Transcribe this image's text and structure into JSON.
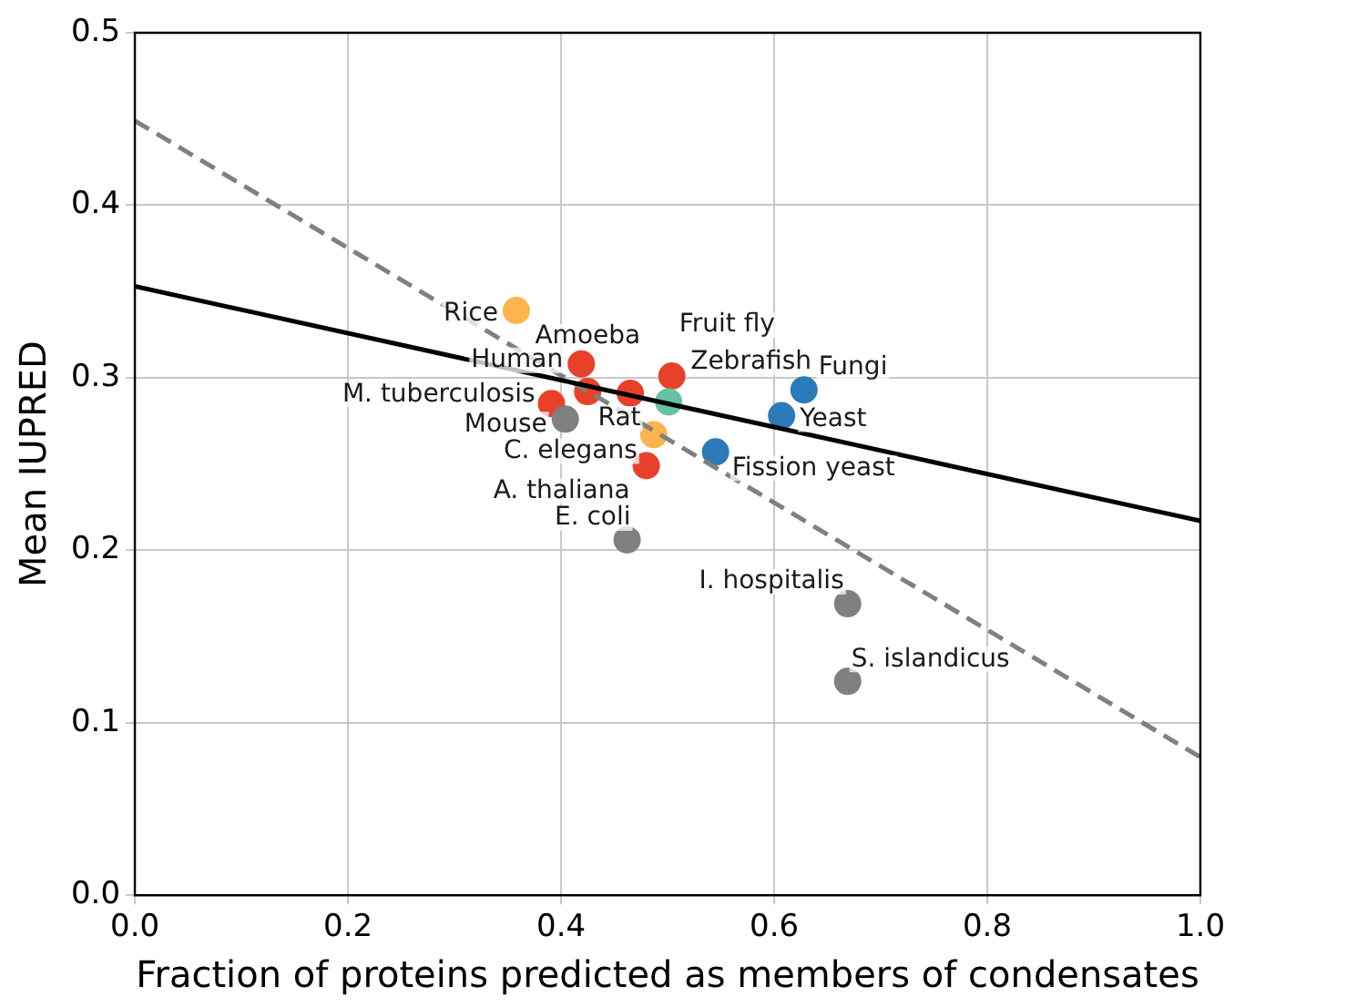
{
  "chart_data": {
    "type": "scatter",
    "xlabel": "Fraction of proteins predicted as members of condensates",
    "ylabel": "Mean IUPRED",
    "xlim": [
      0,
      1
    ],
    "ylim": [
      0,
      0.5
    ],
    "xticks": [
      {
        "value": 0,
        "label": "0.0"
      },
      0.2,
      0.4,
      0.6,
      0.8,
      {
        "value": 1,
        "label": "1.0"
      }
    ],
    "yticks": [
      {
        "value": 0,
        "label": "0.0"
      },
      0.1,
      0.2,
      0.3,
      0.4,
      0.5
    ],
    "grid": true,
    "marker": "circle",
    "series": [
      {
        "x": [
          0.358,
          0.419,
          0.425,
          0.391,
          0.465,
          0.404,
          0.504,
          0.501,
          0.487,
          0.48,
          0.628,
          0.607,
          0.545,
          0.462,
          0.669,
          0.669
        ],
        "values": [
          0.339,
          0.308,
          0.292,
          0.285,
          0.291,
          0.276,
          0.301,
          0.286,
          0.267,
          0.249,
          0.293,
          0.278,
          0.257,
          0.206,
          0.169,
          0.124
        ],
        "colors": [
          "#fdb44c",
          "#e8412a",
          "#e8412a",
          "#e8412a",
          "#e8412a",
          "#808080",
          "#e8412a",
          "#66c2a5",
          "#fdb44c",
          "#e8412a",
          "#2b7bba",
          "#2b7bba",
          "#2b7bba",
          "#808080",
          "#808080",
          "#808080"
        ]
      },
      {
        "type": "line",
        "x": [
          0,
          1
        ],
        "values": [
          0.353,
          0.217
        ],
        "color": "#000000",
        "line_style": "solid",
        "marker": "none"
      },
      {
        "type": "line",
        "x": [
          0,
          1
        ],
        "values": [
          0.449,
          0.08
        ],
        "color": "#808080",
        "line_style": "dashed",
        "marker": "none"
      }
    ],
    "annotations": [
      {
        "text": "Rice",
        "x": 0.358,
        "y": 0.339
      },
      {
        "text": "Human",
        "x": 0.419,
        "y": 0.308
      },
      {
        "text": "Amoeba",
        "x": 0.425,
        "y": 0.292
      },
      {
        "text": "M. tuberculosis",
        "x": 0.391,
        "y": 0.285
      },
      {
        "text": "Rat",
        "x": 0.465,
        "y": 0.291
      },
      {
        "text": "Mouse",
        "x": 0.404,
        "y": 0.276
      },
      {
        "text": "Fruit fly",
        "x": 0.504,
        "y": 0.301
      },
      {
        "text": "Zebrafish",
        "x": 0.501,
        "y": 0.286
      },
      {
        "text": "C. elegans",
        "x": 0.487,
        "y": 0.267
      },
      {
        "text": "A. thaliana",
        "x": 0.48,
        "y": 0.249
      },
      {
        "text": "Fungi",
        "x": 0.628,
        "y": 0.293
      },
      {
        "text": "Yeast",
        "x": 0.607,
        "y": 0.278
      },
      {
        "text": "Fission yeast",
        "x": 0.545,
        "y": 0.257
      },
      {
        "text": "E. coli",
        "x": 0.462,
        "y": 0.206
      },
      {
        "text": "I. hospitalis",
        "x": 0.669,
        "y": 0.169
      },
      {
        "text": "S. islandicus",
        "x": 0.669,
        "y": 0.124
      }
    ]
  }
}
